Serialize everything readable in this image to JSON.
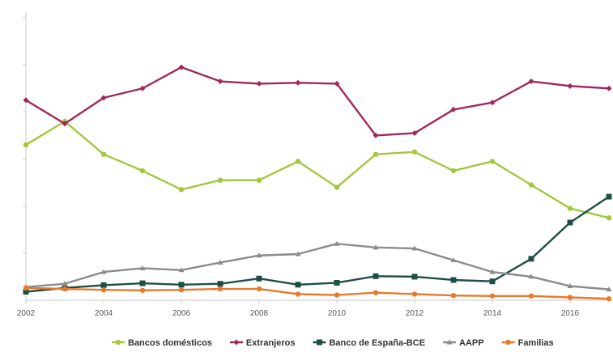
{
  "chart_data": {
    "type": "line",
    "x": [
      2002,
      2003,
      2004,
      2005,
      2006,
      2007,
      2008,
      2009,
      2010,
      2011,
      2012,
      2013,
      2014,
      2015,
      2016,
      2017
    ],
    "x_tick_labels": [
      "2002",
      "2004",
      "2006",
      "2008",
      "2010",
      "2012",
      "2014",
      "2016"
    ],
    "ylim": [
      0,
      60
    ],
    "grid": false,
    "legend_position": "bottom",
    "series": [
      {
        "name": "Bancos domésticos",
        "color": "#a3c740",
        "marker": "circle",
        "values": [
          33,
          38,
          31,
          27.5,
          23.5,
          25.5,
          25.5,
          29.5,
          24,
          31,
          31.5,
          27.5,
          29.5,
          24.5,
          19.5,
          17.5
        ]
      },
      {
        "name": "Extranjeros",
        "color": "#a0285a",
        "marker": "diamond",
        "values": [
          42.5,
          37.5,
          43,
          45,
          49.5,
          46.5,
          46,
          46.2,
          46,
          35,
          35.5,
          40.5,
          42,
          46.5,
          45.5,
          45
        ]
      },
      {
        "name": "Banco de España-BCE",
        "color": "#1e4f47",
        "marker": "square",
        "values": [
          1.8,
          2.6,
          3.2,
          3.6,
          3.3,
          3.5,
          4.6,
          3.3,
          3.7,
          5.1,
          5,
          4.3,
          4,
          8.8,
          16.5,
          22
        ]
      },
      {
        "name": "AAPP",
        "color": "#8c8c8c",
        "marker": "triangle",
        "values": [
          2.8,
          3.5,
          6,
          6.8,
          6.4,
          8,
          9.5,
          9.8,
          12,
          11.2,
          11,
          8.5,
          6,
          5,
          3,
          2.3
        ]
      },
      {
        "name": "Familias",
        "color": "#e8792a",
        "marker": "circle",
        "values": [
          2.6,
          2.4,
          2.2,
          2.1,
          2.2,
          2.4,
          2.4,
          1.3,
          1.1,
          1.6,
          1.3,
          1.0,
          0.9,
          0.9,
          0.6,
          0.3
        ]
      }
    ]
  }
}
